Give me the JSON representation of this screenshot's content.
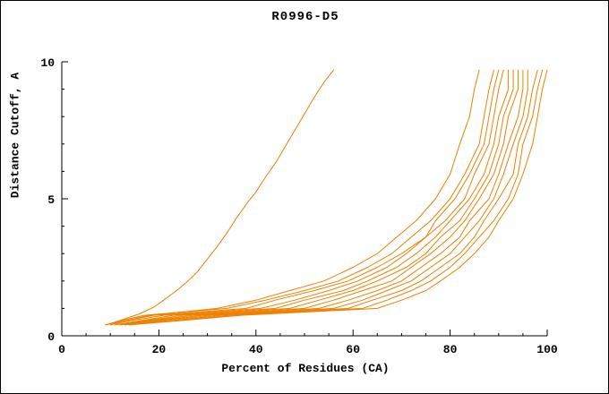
{
  "chart_data": {
    "type": "line",
    "title": "R0996-D5",
    "xlabel": "Percent of Residues (CA)",
    "ylabel": "Distance Cutoff, A",
    "xlim": [
      0,
      100
    ],
    "ylim": [
      0,
      10
    ],
    "xticks": [
      0,
      20,
      40,
      60,
      80,
      100
    ],
    "yticks": [
      0,
      5,
      10
    ],
    "x_minor_step": 5,
    "y_minor_step": 1,
    "grid": false,
    "legend": "none",
    "line_color": "#ee8000",
    "axis_color": "#000000",
    "series": [
      {
        "points": [
          [
            9,
            0.4
          ],
          [
            11,
            0.5
          ],
          [
            13,
            0.62
          ],
          [
            16,
            0.8
          ],
          [
            19,
            1.05
          ],
          [
            21,
            1.3
          ],
          [
            24,
            1.7
          ],
          [
            26,
            2.0
          ],
          [
            28,
            2.35
          ],
          [
            30,
            2.8
          ],
          [
            32,
            3.25
          ],
          [
            34,
            3.75
          ],
          [
            36,
            4.3
          ],
          [
            38,
            4.8
          ],
          [
            40,
            5.25
          ],
          [
            42,
            5.8
          ],
          [
            44,
            6.3
          ],
          [
            46,
            6.9
          ],
          [
            48,
            7.5
          ],
          [
            50,
            8.1
          ],
          [
            52,
            8.7
          ],
          [
            54,
            9.25
          ],
          [
            56,
            9.7
          ]
        ]
      },
      {
        "points": [
          [
            9,
            0.4
          ],
          [
            13,
            0.55
          ],
          [
            18,
            0.75
          ],
          [
            32,
            1.0
          ],
          [
            40,
            1.3
          ],
          [
            47,
            1.65
          ],
          [
            54,
            2.0
          ],
          [
            60,
            2.5
          ],
          [
            65,
            3.0
          ],
          [
            69,
            3.6
          ],
          [
            73,
            4.2
          ],
          [
            77,
            5.0
          ],
          [
            80,
            5.9
          ],
          [
            82,
            7.0
          ],
          [
            84,
            8.0
          ],
          [
            85,
            9.0
          ],
          [
            86,
            9.7
          ]
        ]
      },
      {
        "points": [
          [
            9,
            0.4
          ],
          [
            12,
            0.55
          ],
          [
            17,
            0.75
          ],
          [
            34,
            1.0
          ],
          [
            42,
            1.3
          ],
          [
            50,
            1.65
          ],
          [
            57,
            2.0
          ],
          [
            63,
            2.5
          ],
          [
            68,
            3.0
          ],
          [
            72,
            3.6
          ],
          [
            76,
            4.2
          ],
          [
            80,
            5.0
          ],
          [
            83,
            5.9
          ],
          [
            86,
            7.0
          ],
          [
            87,
            8.0
          ],
          [
            88,
            9.0
          ],
          [
            89,
            9.7
          ]
        ]
      },
      {
        "points": [
          [
            10,
            0.4
          ],
          [
            13,
            0.55
          ],
          [
            19,
            0.75
          ],
          [
            38,
            1.0
          ],
          [
            44,
            1.3
          ],
          [
            52,
            1.65
          ],
          [
            59,
            2.0
          ],
          [
            65,
            2.5
          ],
          [
            70,
            3.0
          ],
          [
            75,
            3.6
          ],
          [
            77,
            4.2
          ],
          [
            81,
            5.0
          ],
          [
            84,
            5.9
          ],
          [
            87,
            7.0
          ],
          [
            88,
            8.0
          ],
          [
            89,
            9.0
          ],
          [
            90,
            9.7
          ]
        ]
      },
      {
        "points": [
          [
            10,
            0.4
          ],
          [
            14,
            0.55
          ],
          [
            21,
            0.75
          ],
          [
            41,
            1.0
          ],
          [
            48,
            1.3
          ],
          [
            55,
            1.65
          ],
          [
            61,
            2.0
          ],
          [
            67,
            2.5
          ],
          [
            71,
            3.0
          ],
          [
            75,
            3.6
          ],
          [
            79,
            4.2
          ],
          [
            83,
            5.0
          ],
          [
            85,
            5.9
          ],
          [
            88,
            7.0
          ],
          [
            89,
            8.0
          ],
          [
            90,
            9.0
          ],
          [
            91,
            9.7
          ]
        ]
      },
      {
        "points": [
          [
            11,
            0.4
          ],
          [
            16,
            0.55
          ],
          [
            23,
            0.75
          ],
          [
            44,
            1.0
          ],
          [
            50,
            1.3
          ],
          [
            58,
            1.65
          ],
          [
            63,
            2.0
          ],
          [
            69,
            2.5
          ],
          [
            73,
            3.0
          ],
          [
            77,
            3.6
          ],
          [
            80,
            4.2
          ],
          [
            84,
            5.0
          ],
          [
            87,
            5.9
          ],
          [
            89,
            7.0
          ],
          [
            90,
            8.0
          ],
          [
            92,
            9.0
          ],
          [
            92,
            9.7
          ]
        ]
      },
      {
        "points": [
          [
            11,
            0.4
          ],
          [
            17,
            0.55
          ],
          [
            25,
            0.75
          ],
          [
            47,
            1.0
          ],
          [
            53,
            1.3
          ],
          [
            60,
            1.65
          ],
          [
            65,
            2.0
          ],
          [
            71,
            2.5
          ],
          [
            75,
            3.0
          ],
          [
            78,
            3.6
          ],
          [
            82,
            4.2
          ],
          [
            85,
            5.0
          ],
          [
            88,
            5.9
          ],
          [
            90,
            7.0
          ],
          [
            91,
            8.0
          ],
          [
            93,
            9.0
          ],
          [
            93,
            9.7
          ]
        ]
      },
      {
        "points": [
          [
            12,
            0.4
          ],
          [
            18,
            0.55
          ],
          [
            27,
            0.75
          ],
          [
            50,
            1.0
          ],
          [
            56,
            1.3
          ],
          [
            62,
            1.65
          ],
          [
            68,
            2.0
          ],
          [
            72,
            2.5
          ],
          [
            76,
            3.0
          ],
          [
            80,
            3.6
          ],
          [
            83,
            4.2
          ],
          [
            86,
            5.0
          ],
          [
            89,
            5.9
          ],
          [
            91,
            7.0
          ],
          [
            92,
            8.0
          ],
          [
            94,
            9.0
          ],
          [
            94,
            9.7
          ]
        ]
      },
      {
        "points": [
          [
            12,
            0.4
          ],
          [
            19,
            0.55
          ],
          [
            29,
            0.75
          ],
          [
            53,
            1.0
          ],
          [
            59,
            1.3
          ],
          [
            65,
            1.65
          ],
          [
            70,
            2.0
          ],
          [
            74,
            2.5
          ],
          [
            78,
            3.0
          ],
          [
            82,
            3.6
          ],
          [
            84,
            4.2
          ],
          [
            88,
            5.0
          ],
          [
            90,
            5.9
          ],
          [
            92,
            7.0
          ],
          [
            94,
            8.0
          ],
          [
            95,
            9.0
          ],
          [
            95,
            9.7
          ]
        ]
      },
      {
        "points": [
          [
            13,
            0.4
          ],
          [
            20,
            0.55
          ],
          [
            31,
            0.75
          ],
          [
            56,
            1.0
          ],
          [
            62,
            1.3
          ],
          [
            67,
            1.65
          ],
          [
            72,
            2.0
          ],
          [
            76,
            2.5
          ],
          [
            80,
            3.0
          ],
          [
            83,
            3.6
          ],
          [
            86,
            4.2
          ],
          [
            89,
            5.0
          ],
          [
            91,
            5.9
          ],
          [
            93,
            7.0
          ],
          [
            95,
            8.0
          ],
          [
            96,
            9.0
          ],
          [
            96,
            9.7
          ]
        ]
      },
      {
        "points": [
          [
            13,
            0.4
          ],
          [
            22,
            0.55
          ],
          [
            33,
            0.75
          ],
          [
            59,
            1.0
          ],
          [
            64,
            1.3
          ],
          [
            70,
            1.65
          ],
          [
            74,
            2.0
          ],
          [
            78,
            2.5
          ],
          [
            82,
            3.0
          ],
          [
            85,
            3.6
          ],
          [
            87,
            4.2
          ],
          [
            90,
            5.0
          ],
          [
            93,
            5.9
          ],
          [
            94,
            7.0
          ],
          [
            96,
            8.0
          ],
          [
            97,
            9.0
          ],
          [
            98,
            9.7
          ]
        ]
      },
      {
        "points": [
          [
            14,
            0.4
          ],
          [
            23,
            0.55
          ],
          [
            35,
            0.75
          ],
          [
            62,
            1.0
          ],
          [
            67,
            1.3
          ],
          [
            72,
            1.65
          ],
          [
            76,
            2.0
          ],
          [
            80,
            2.5
          ],
          [
            83,
            3.0
          ],
          [
            86,
            3.6
          ],
          [
            89,
            4.2
          ],
          [
            92,
            5.0
          ],
          [
            94,
            5.9
          ],
          [
            95,
            7.0
          ],
          [
            97,
            8.0
          ],
          [
            98,
            9.0
          ],
          [
            99,
            9.7
          ]
        ]
      },
      {
        "points": [
          [
            14,
            0.4
          ],
          [
            24,
            0.55
          ],
          [
            37,
            0.75
          ],
          [
            65,
            1.0
          ],
          [
            70,
            1.3
          ],
          [
            75,
            1.65
          ],
          [
            78,
            2.0
          ],
          [
            82,
            2.5
          ],
          [
            85,
            3.0
          ],
          [
            88,
            3.6
          ],
          [
            90,
            4.2
          ],
          [
            93,
            5.0
          ],
          [
            95,
            5.9
          ],
          [
            97,
            7.0
          ],
          [
            98,
            8.0
          ],
          [
            99,
            9.0
          ],
          [
            100,
            9.7
          ]
        ]
      }
    ]
  }
}
